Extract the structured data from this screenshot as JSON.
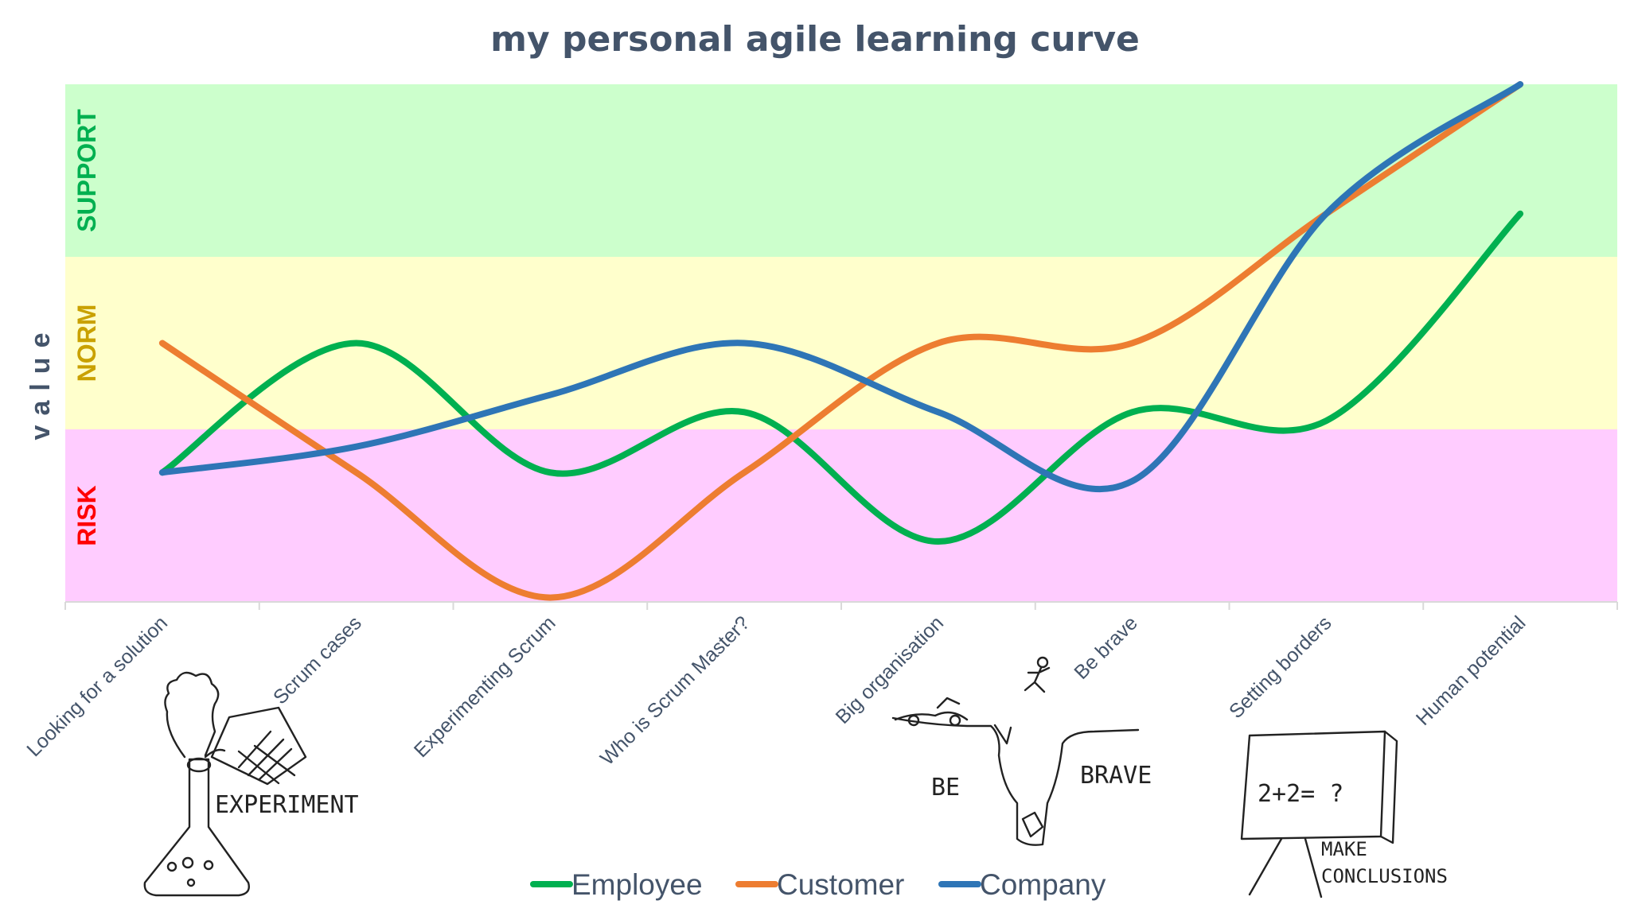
{
  "chart_data": {
    "type": "line",
    "title": "my personal agile learning curve",
    "ylabel": "value",
    "xlabel": "",
    "categories": [
      "Looking for a solution",
      "Scrum cases",
      "Experimenting Scrum",
      "Who is Scrum Master?",
      "Big organisation",
      "Be brave",
      "Setting borders",
      "Human potential"
    ],
    "bands": [
      {
        "label": "SUPPORT",
        "from": 5.5,
        "to": 7.5,
        "fill": "#ccffcc",
        "text_color": "#00b050"
      },
      {
        "label": "NORM",
        "from": 3.5,
        "to": 5.5,
        "fill": "#ffffcc",
        "text_color": "#c9a100"
      },
      {
        "label": "RISK",
        "from": 1.5,
        "to": 3.5,
        "fill": "#ffccff",
        "text_color": "#ff0000"
      }
    ],
    "ylim": [
      1.5,
      7.5
    ],
    "series": [
      {
        "name": "Employee",
        "color": "#00b050",
        "values": [
          3.0,
          4.5,
          3.0,
          3.7,
          2.2,
          3.7,
          3.6,
          6.0
        ]
      },
      {
        "name": "Customer",
        "color": "#ed7d31",
        "values": [
          4.5,
          3.0,
          1.55,
          3.0,
          4.5,
          4.5,
          6.0,
          7.5
        ]
      },
      {
        "name": "Company",
        "color": "#2e75b6",
        "values": [
          3.0,
          3.3,
          3.9,
          4.5,
          3.7,
          2.9,
          6.0,
          7.5
        ]
      }
    ],
    "legend_position": "bottom-center",
    "grid": false
  },
  "annotations": {
    "experiment": "EXPERIMENT",
    "be": "BE",
    "brave": "BRAVE",
    "equation": "2+2= ?",
    "make": "MAKE",
    "conclusions": "CONCLUSIONS"
  }
}
